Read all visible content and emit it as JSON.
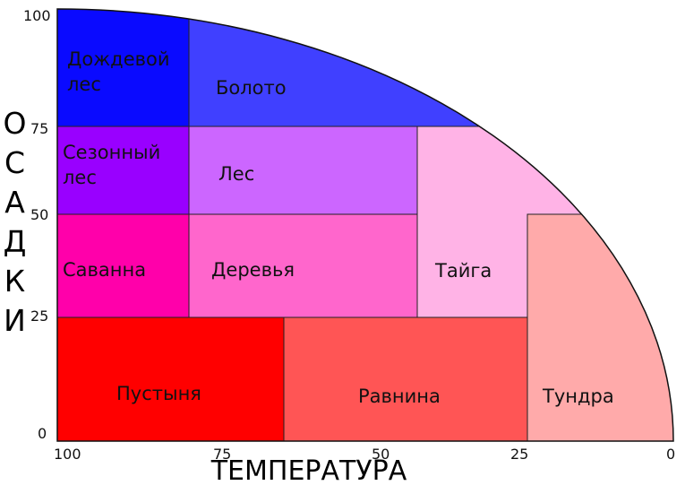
{
  "y_axis_title": "ОСАДКИ",
  "x_axis_title": "ТЕМПЕРАТУРА",
  "y_ticks": [
    100,
    75,
    50,
    25,
    0
  ],
  "x_ticks": [
    100,
    75,
    50,
    25,
    0
  ],
  "regions": [
    "Дождевой лес",
    "Болото",
    "Сезонный лес",
    "Лес",
    "Саванна",
    "Деревья",
    "Тайга",
    "Пустыня",
    "Равнина",
    "Тундра"
  ]
}
